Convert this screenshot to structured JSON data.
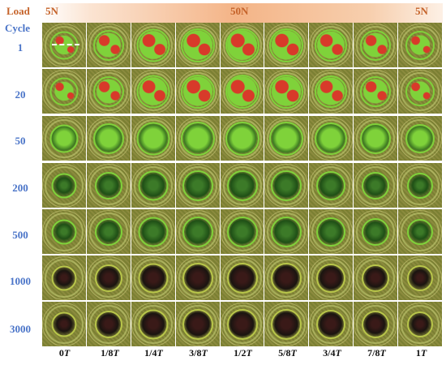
{
  "load": {
    "title": "Load",
    "values": [
      "5N",
      "50N",
      "5N"
    ]
  },
  "cycle": {
    "title": "Cycle",
    "rows": [
      "1",
      "20",
      "50",
      "200",
      "500",
      "1000",
      "3000"
    ]
  },
  "columns": [
    {
      "num": "0",
      "t": "T"
    },
    {
      "num": "1/8",
      "t": "T"
    },
    {
      "num": "1/4",
      "t": "T"
    },
    {
      "num": "3/8",
      "t": "T"
    },
    {
      "num": "1/2",
      "t": "T"
    },
    {
      "num": "5/8",
      "t": "T"
    },
    {
      "num": "3/4",
      "t": "T"
    },
    {
      "num": "7/8",
      "t": "T"
    },
    {
      "num": "1",
      "t": "T"
    }
  ],
  "colors": {
    "load_text": "#c5632a",
    "cycle_text": "#4a74c8",
    "bg_olive": "#8a8a3c",
    "green_light": "#7fd23a",
    "green_dark": "#1f4f16",
    "red_patch": "#d83a2a"
  }
}
